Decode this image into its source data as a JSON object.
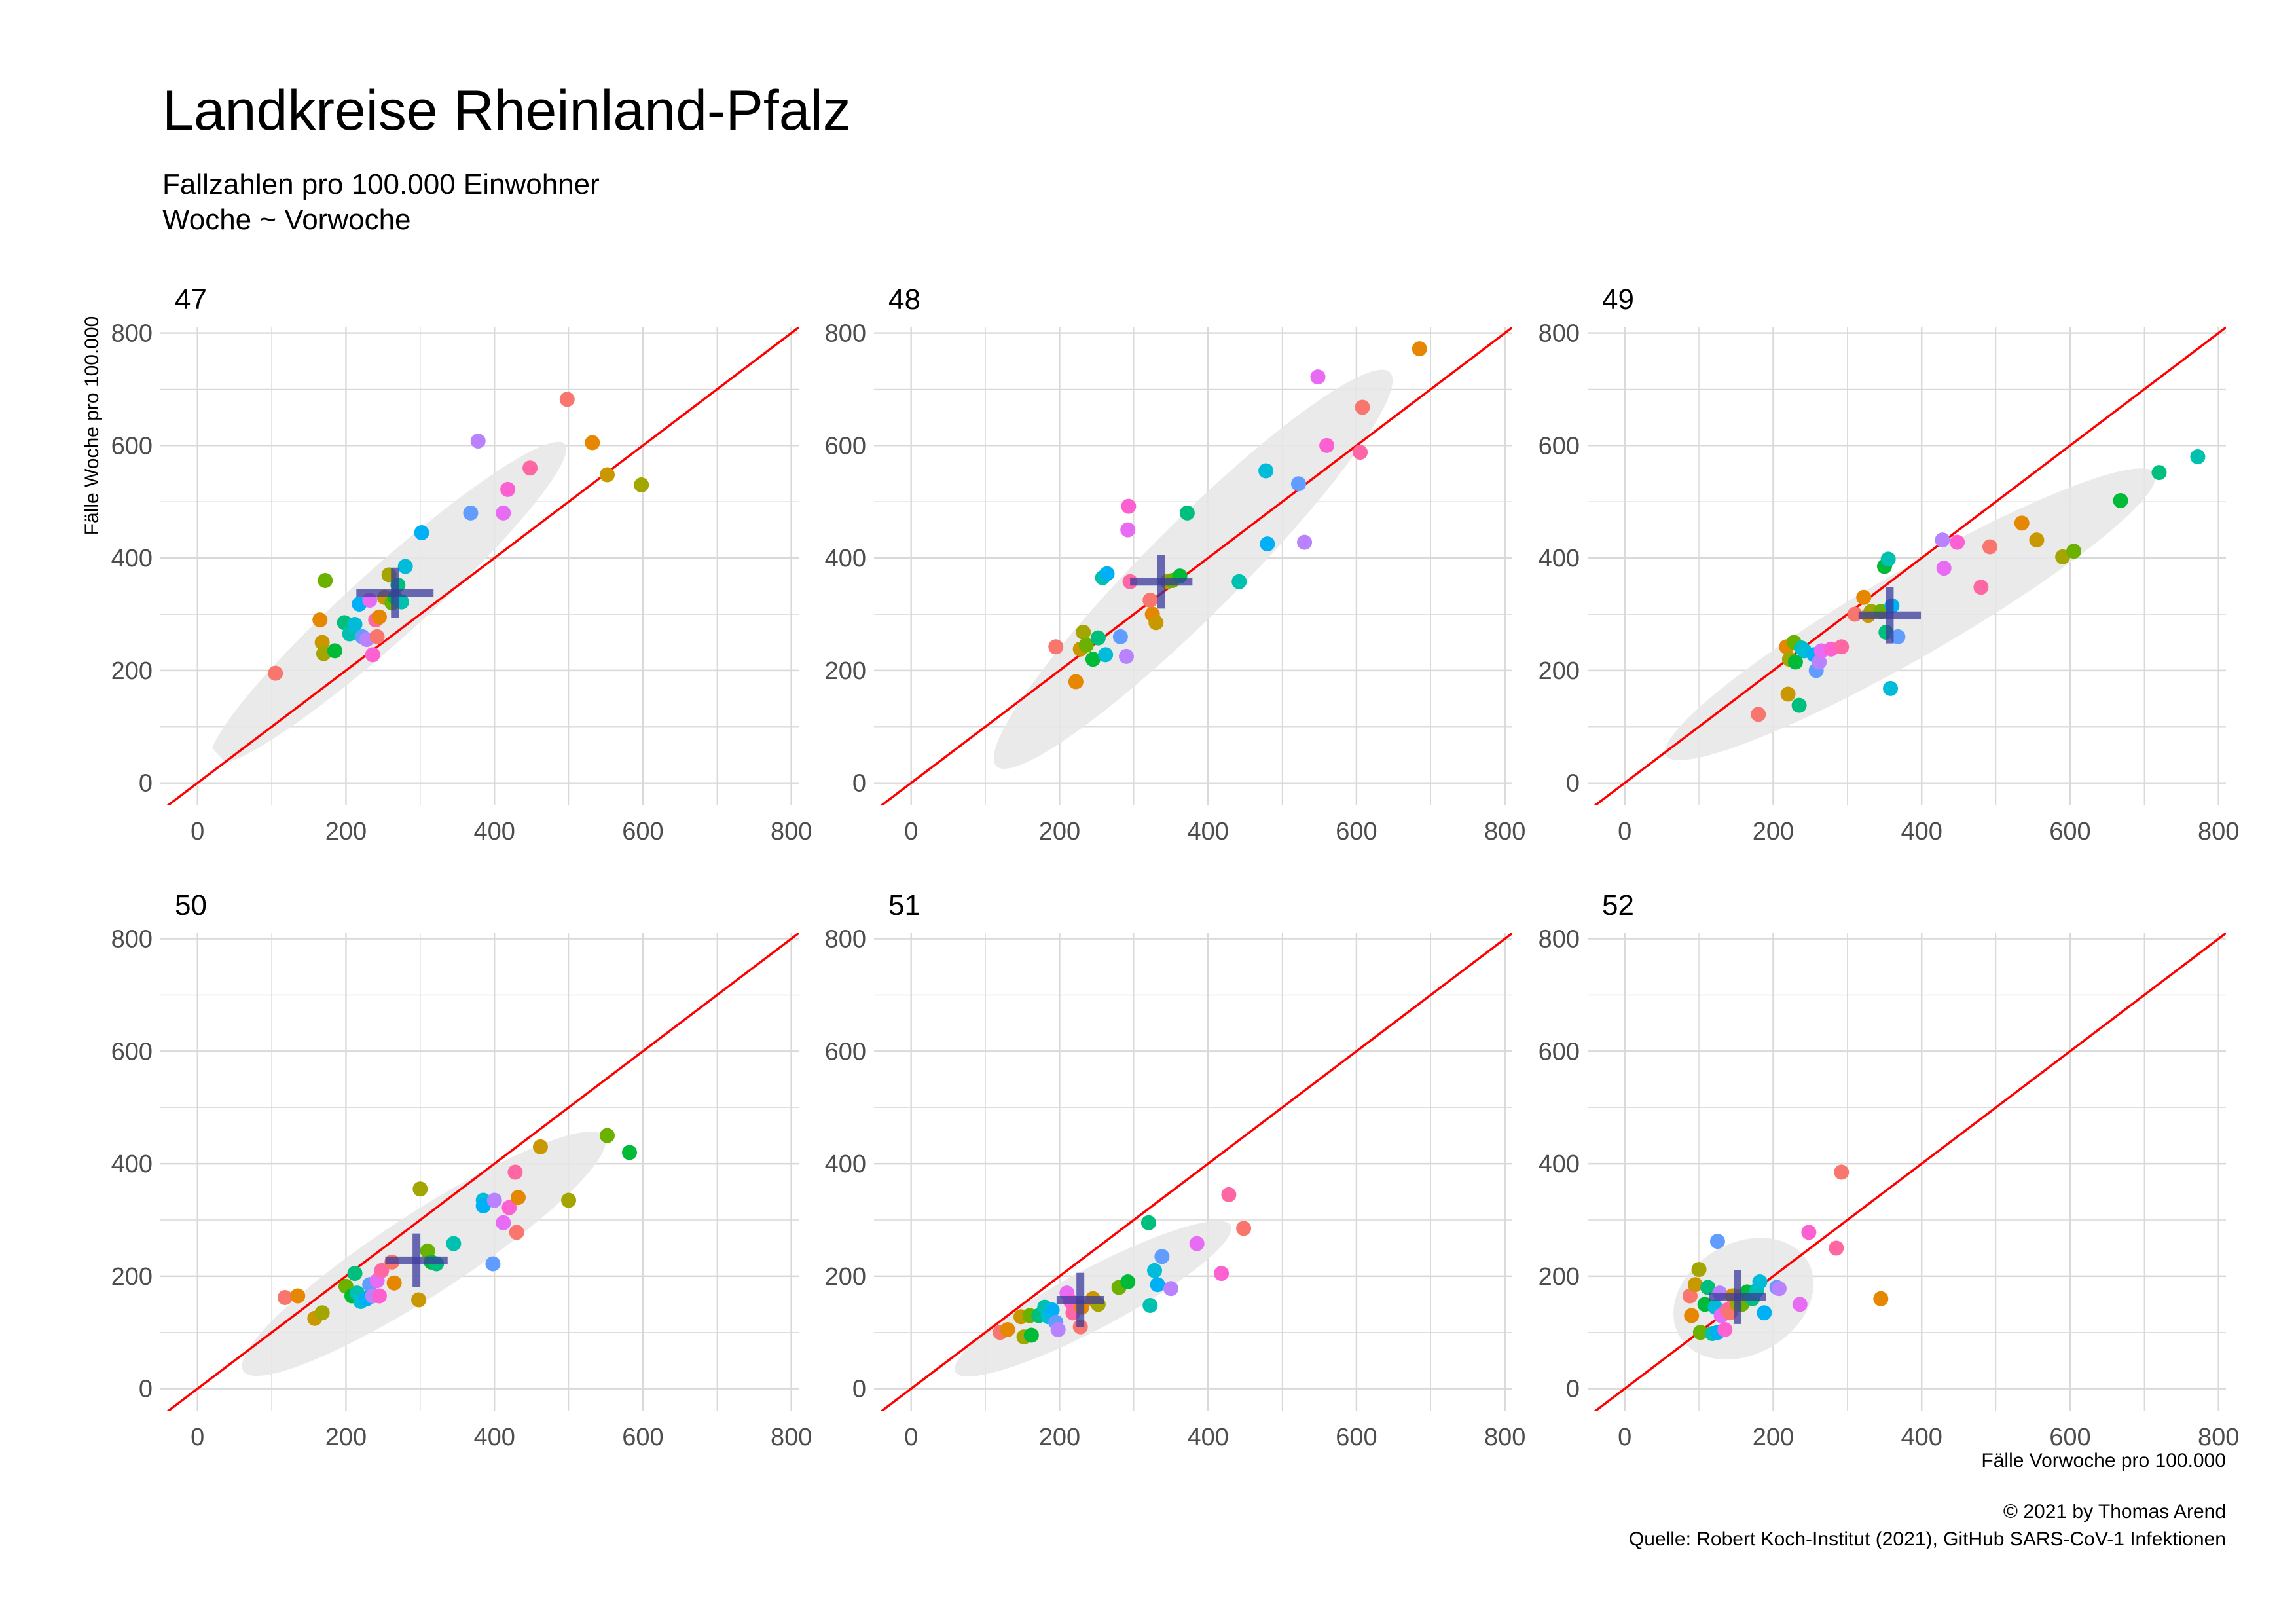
{
  "chart_data": {
    "type": "scatter",
    "title": "Landkreise Rheinland-Pfalz",
    "subtitle_lines": [
      "Fallzahlen pro 100.000 Einwohner",
      "Woche ~ Vorwoche"
    ],
    "xlabel": "Fälle Vorwoche pro 100.000",
    "ylabel": "Fälle Woche pro 100.000",
    "caption_lines": [
      "© 2021 by Thomas Arend",
      "Quelle: Robert Koch-Institut (2021), GitHub SARS-CoV-1 Infektionen"
    ],
    "xlim": [
      -50,
      810
    ],
    "ylim": [
      -40,
      810
    ],
    "xticks": [
      0,
      200,
      400,
      600,
      800
    ],
    "yticks": [
      0,
      200,
      400,
      600,
      800
    ],
    "reference_line": "y = x",
    "colors": {
      "reference_line": "#ff0000",
      "crosshair": "#3b3b9e",
      "ellipse": "#e6e6e6",
      "grid": "#d9d9d9",
      "palette": [
        "#f8766d",
        "#e58700",
        "#c99800",
        "#a3a500",
        "#6bb100",
        "#00ba38",
        "#00bf7d",
        "#00c0af",
        "#00bcd8",
        "#00b0f6",
        "#619cff",
        "#b983ff",
        "#e76bf3",
        "#fd61d1",
        "#ff67a4"
      ]
    },
    "panels": [
      {
        "label": "47",
        "mean": [
          266,
          338
        ],
        "cross_half": [
          52,
          45
        ],
        "ellipse": {
          "cx": 257,
          "cy": 320,
          "rx": 320,
          "ry": 48,
          "angle": 42
        },
        "points": [
          [
            105,
            195
          ],
          [
            165,
            290
          ],
          [
            168,
            250
          ],
          [
            170,
            230
          ],
          [
            172,
            360
          ],
          [
            185,
            235
          ],
          [
            198,
            285
          ],
          [
            205,
            265
          ],
          [
            212,
            282
          ],
          [
            218,
            318
          ],
          [
            222,
            260
          ],
          [
            228,
            255
          ],
          [
            232,
            325
          ],
          [
            236,
            228
          ],
          [
            240,
            290
          ],
          [
            242,
            260
          ],
          [
            245,
            295
          ],
          [
            252,
            330
          ],
          [
            258,
            370
          ],
          [
            262,
            320
          ],
          [
            266,
            330
          ],
          [
            270,
            352
          ],
          [
            275,
            322
          ],
          [
            280,
            385
          ],
          [
            302,
            445
          ],
          [
            368,
            480
          ],
          [
            378,
            608
          ],
          [
            412,
            480
          ],
          [
            418,
            522
          ],
          [
            448,
            560
          ],
          [
            498,
            682
          ],
          [
            532,
            605
          ],
          [
            552,
            548
          ],
          [
            598,
            530
          ]
        ]
      },
      {
        "label": "48",
        "mean": [
          337,
          358
        ],
        "cross_half": [
          42,
          48
        ],
        "ellipse": {
          "cx": 380,
          "cy": 380,
          "rx": 375,
          "ry": 62,
          "angle": 45
        },
        "points": [
          [
            195,
            242
          ],
          [
            222,
            180
          ],
          [
            228,
            238
          ],
          [
            232,
            268
          ],
          [
            236,
            245
          ],
          [
            245,
            220
          ],
          [
            252,
            258
          ],
          [
            258,
            365
          ],
          [
            262,
            228
          ],
          [
            264,
            372
          ],
          [
            282,
            260
          ],
          [
            290,
            225
          ],
          [
            292,
            450
          ],
          [
            293,
            492
          ],
          [
            295,
            358
          ],
          [
            322,
            325
          ],
          [
            325,
            300
          ],
          [
            330,
            285
          ],
          [
            345,
            358
          ],
          [
            352,
            360
          ],
          [
            362,
            368
          ],
          [
            372,
            480
          ],
          [
            442,
            358
          ],
          [
            478,
            555
          ],
          [
            480,
            425
          ],
          [
            522,
            532
          ],
          [
            530,
            428
          ],
          [
            548,
            722
          ],
          [
            560,
            600
          ],
          [
            605,
            588
          ],
          [
            608,
            668
          ],
          [
            685,
            772
          ]
        ]
      },
      {
        "label": "49",
        "mean": [
          357,
          298
        ],
        "cross_half": [
          42,
          50
        ],
        "ellipse": {
          "cx": 385,
          "cy": 300,
          "rx": 380,
          "ry": 58,
          "angle": 30
        },
        "points": [
          [
            180,
            122
          ],
          [
            218,
            242
          ],
          [
            220,
            158
          ],
          [
            222,
            220
          ],
          [
            228,
            250
          ],
          [
            230,
            215
          ],
          [
            235,
            138
          ],
          [
            238,
            240
          ],
          [
            242,
            235
          ],
          [
            255,
            228
          ],
          [
            258,
            200
          ],
          [
            262,
            215
          ],
          [
            265,
            235
          ],
          [
            278,
            238
          ],
          [
            292,
            242
          ],
          [
            310,
            300
          ],
          [
            322,
            330
          ],
          [
            328,
            298
          ],
          [
            332,
            305
          ],
          [
            345,
            305
          ],
          [
            350,
            385
          ],
          [
            352,
            268
          ],
          [
            355,
            398
          ],
          [
            358,
            168
          ],
          [
            360,
            315
          ],
          [
            368,
            260
          ],
          [
            428,
            432
          ],
          [
            430,
            382
          ],
          [
            448,
            428
          ],
          [
            480,
            348
          ],
          [
            492,
            420
          ],
          [
            535,
            462
          ],
          [
            555,
            432
          ],
          [
            590,
            402
          ],
          [
            605,
            412
          ],
          [
            668,
            502
          ],
          [
            720,
            552
          ],
          [
            772,
            580
          ]
        ]
      },
      {
        "label": "50",
        "mean": [
          295,
          228
        ],
        "cross_half": [
          42,
          48
        ],
        "ellipse": {
          "cx": 305,
          "cy": 240,
          "rx": 290,
          "ry": 55,
          "angle": 33
        },
        "points": [
          [
            118,
            162
          ],
          [
            135,
            165
          ],
          [
            158,
            125
          ],
          [
            168,
            135
          ],
          [
            200,
            182
          ],
          [
            208,
            165
          ],
          [
            212,
            205
          ],
          [
            215,
            170
          ],
          [
            220,
            155
          ],
          [
            228,
            160
          ],
          [
            232,
            185
          ],
          [
            236,
            165
          ],
          [
            242,
            192
          ],
          [
            245,
            165
          ],
          [
            248,
            210
          ],
          [
            262,
            225
          ],
          [
            265,
            188
          ],
          [
            298,
            158
          ],
          [
            300,
            355
          ],
          [
            310,
            245
          ],
          [
            315,
            225
          ],
          [
            322,
            222
          ],
          [
            345,
            258
          ],
          [
            385,
            335
          ],
          [
            385,
            325
          ],
          [
            398,
            222
          ],
          [
            400,
            335
          ],
          [
            412,
            295
          ],
          [
            420,
            322
          ],
          [
            428,
            385
          ],
          [
            430,
            278
          ],
          [
            432,
            340
          ],
          [
            462,
            430
          ],
          [
            500,
            335
          ],
          [
            552,
            450
          ],
          [
            582,
            420
          ]
        ]
      },
      {
        "label": "51",
        "mean": [
          228,
          158
        ],
        "cross_half": [
          32,
          48
        ],
        "ellipse": {
          "cx": 245,
          "cy": 160,
          "rx": 210,
          "ry": 40,
          "angle": 28
        },
        "points": [
          [
            120,
            100
          ],
          [
            130,
            105
          ],
          [
            148,
            128
          ],
          [
            152,
            92
          ],
          [
            160,
            130
          ],
          [
            162,
            95
          ],
          [
            172,
            130
          ],
          [
            180,
            145
          ],
          [
            185,
            128
          ],
          [
            190,
            140
          ],
          [
            195,
            118
          ],
          [
            198,
            105
          ],
          [
            210,
            170
          ],
          [
            215,
            155
          ],
          [
            218,
            135
          ],
          [
            228,
            110
          ],
          [
            230,
            145
          ],
          [
            245,
            160
          ],
          [
            252,
            150
          ],
          [
            280,
            180
          ],
          [
            292,
            190
          ],
          [
            320,
            295
          ],
          [
            322,
            148
          ],
          [
            328,
            210
          ],
          [
            332,
            185
          ],
          [
            338,
            235
          ],
          [
            350,
            178
          ],
          [
            385,
            258
          ],
          [
            418,
            205
          ],
          [
            428,
            345
          ],
          [
            448,
            285
          ]
        ]
      },
      {
        "label": "52",
        "mean": [
          152,
          163
        ],
        "cross_half": [
          38,
          48
        ],
        "ellipse": {
          "cx": 160,
          "cy": 160,
          "rx": 100,
          "ry": 75,
          "angle": 30
        },
        "points": [
          [
            88,
            165
          ],
          [
            90,
            130
          ],
          [
            95,
            185
          ],
          [
            100,
            212
          ],
          [
            102,
            100
          ],
          [
            108,
            150
          ],
          [
            112,
            180
          ],
          [
            118,
            98
          ],
          [
            122,
            145
          ],
          [
            125,
            100
          ],
          [
            125,
            262
          ],
          [
            128,
            170
          ],
          [
            130,
            130
          ],
          [
            135,
            105
          ],
          [
            138,
            140
          ],
          [
            142,
            135
          ],
          [
            145,
            165
          ],
          [
            148,
            165
          ],
          [
            152,
            150
          ],
          [
            158,
            150
          ],
          [
            165,
            172
          ],
          [
            172,
            160
          ],
          [
            178,
            175
          ],
          [
            182,
            190
          ],
          [
            188,
            135
          ],
          [
            205,
            180
          ],
          [
            208,
            178
          ],
          [
            236,
            150
          ],
          [
            248,
            278
          ],
          [
            285,
            250
          ],
          [
            292,
            385
          ],
          [
            345,
            160
          ]
        ]
      }
    ]
  }
}
